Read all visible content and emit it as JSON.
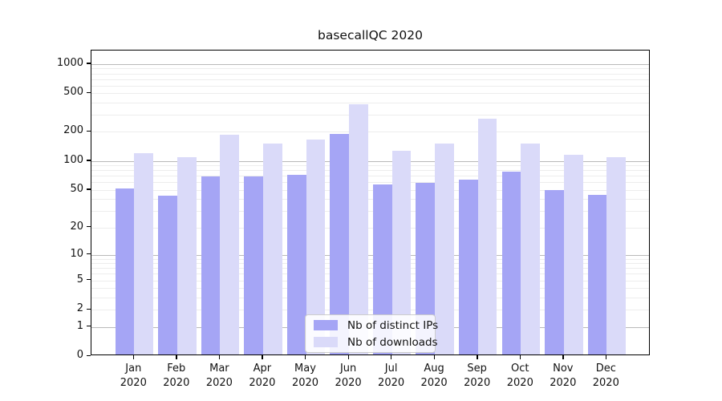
{
  "title": "basecallQC 2020",
  "colors": {
    "bar_dark": "#a5a5f5",
    "bar_light": "#dadaf9",
    "grid_minor": "#ededed",
    "grid_major": "#b9b9b9",
    "axis": "#000000",
    "background": "#ffffff"
  },
  "chart_data": {
    "type": "bar",
    "title": "basecallQC 2020",
    "categories": [
      {
        "line1": "Jan",
        "line2": "2020"
      },
      {
        "line1": "Feb",
        "line2": "2020"
      },
      {
        "line1": "Mar",
        "line2": "2020"
      },
      {
        "line1": "Apr",
        "line2": "2020"
      },
      {
        "line1": "May",
        "line2": "2020"
      },
      {
        "line1": "Jun",
        "line2": "2020"
      },
      {
        "line1": "Jul",
        "line2": "2020"
      },
      {
        "line1": "Aug",
        "line2": "2020"
      },
      {
        "line1": "Sep",
        "line2": "2020"
      },
      {
        "line1": "Oct",
        "line2": "2020"
      },
      {
        "line1": "Nov",
        "line2": "2020"
      },
      {
        "line1": "Dec",
        "line2": "2020"
      }
    ],
    "series": [
      {
        "name": "Nb of distinct IPs",
        "color": "#a5a5f5",
        "values": [
          50,
          42,
          66,
          66,
          69,
          185,
          55,
          57,
          61,
          74,
          48,
          43
        ]
      },
      {
        "name": "Nb of downloads",
        "color": "#dadaf9",
        "values": [
          115,
          105,
          180,
          145,
          160,
          370,
          123,
          145,
          265,
          145,
          112,
          105
        ]
      }
    ],
    "xlabel": "",
    "ylabel": "",
    "yscale": "log1p",
    "ylim": [
      0,
      1200
    ],
    "yticks": [
      0,
      1,
      2,
      5,
      10,
      20,
      50,
      100,
      200,
      500,
      1000
    ],
    "grid": true,
    "major_grid_values": [
      1,
      10,
      100,
      1000
    ],
    "minor_grid_values": [
      2,
      3,
      4,
      5,
      6,
      7,
      8,
      9,
      20,
      30,
      40,
      50,
      60,
      70,
      80,
      90,
      200,
      300,
      400,
      500,
      600,
      700,
      800,
      900
    ],
    "legend_entries": [
      "Nb of distinct IPs",
      "Nb of downloads"
    ],
    "legend_position": "bottom-center"
  }
}
